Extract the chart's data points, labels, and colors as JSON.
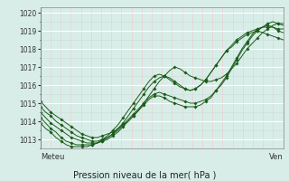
{
  "title": "Pression niveau de la mer( hPa )",
  "xlabel_left": "Meteu",
  "xlabel_right": "Ven",
  "bg_color": "#d8ede8",
  "grid_major_color": "#ffffff",
  "grid_minor_color_h": "#c8ddd8",
  "grid_minor_color_v": "#f0c8c8",
  "line_color": "#1a5c1a",
  "ylim": [
    1012.5,
    1020.3
  ],
  "yticks": [
    1013,
    1014,
    1015,
    1016,
    1017,
    1018,
    1019,
    1020
  ],
  "n_points": 48,
  "series": [
    [
      1015.1,
      1014.8,
      1014.5,
      1014.3,
      1014.1,
      1013.9,
      1013.7,
      1013.5,
      1013.3,
      1013.2,
      1013.1,
      1013.1,
      1013.2,
      1013.3,
      1013.4,
      1013.6,
      1013.8,
      1014.0,
      1014.3,
      1014.6,
      1015.0,
      1015.4,
      1015.8,
      1016.2,
      1016.5,
      1016.8,
      1017.0,
      1016.9,
      1016.7,
      1016.5,
      1016.4,
      1016.3,
      1016.2,
      1016.2,
      1016.3,
      1016.4,
      1016.6,
      1016.9,
      1017.2,
      1017.6,
      1018.0,
      1018.3,
      1018.6,
      1018.9,
      1019.1,
      1019.3,
      1019.4,
      1019.4
    ],
    [
      1014.8,
      1014.5,
      1014.3,
      1014.0,
      1013.8,
      1013.6,
      1013.4,
      1013.2,
      1013.1,
      1013.0,
      1012.9,
      1012.9,
      1013.0,
      1013.1,
      1013.3,
      1013.5,
      1013.8,
      1014.1,
      1014.4,
      1014.7,
      1015.0,
      1015.3,
      1015.5,
      1015.6,
      1015.5,
      1015.4,
      1015.3,
      1015.2,
      1015.1,
      1015.0,
      1015.0,
      1015.1,
      1015.2,
      1015.4,
      1015.7,
      1016.0,
      1016.4,
      1016.9,
      1017.4,
      1017.9,
      1018.3,
      1018.7,
      1019.0,
      1019.2,
      1019.4,
      1019.5,
      1019.4,
      1019.3
    ],
    [
      1014.5,
      1014.2,
      1013.9,
      1013.7,
      1013.5,
      1013.3,
      1013.1,
      1013.0,
      1012.9,
      1012.8,
      1012.8,
      1012.8,
      1012.9,
      1013.0,
      1013.2,
      1013.4,
      1013.7,
      1014.0,
      1014.3,
      1014.6,
      1014.9,
      1015.2,
      1015.4,
      1015.4,
      1015.3,
      1015.1,
      1015.0,
      1014.9,
      1014.8,
      1014.8,
      1014.8,
      1014.9,
      1015.1,
      1015.3,
      1015.7,
      1016.1,
      1016.5,
      1017.0,
      1017.5,
      1018.0,
      1018.4,
      1018.8,
      1019.1,
      1019.2,
      1019.2,
      1019.2,
      1019.1,
      1019.1
    ],
    [
      1014.2,
      1013.9,
      1013.6,
      1013.4,
      1013.1,
      1012.9,
      1012.8,
      1012.7,
      1012.7,
      1012.7,
      1012.7,
      1012.8,
      1012.9,
      1013.1,
      1013.3,
      1013.6,
      1013.9,
      1014.3,
      1014.7,
      1015.1,
      1015.5,
      1015.9,
      1016.2,
      1016.4,
      1016.5,
      1016.4,
      1016.2,
      1016.0,
      1015.8,
      1015.7,
      1015.8,
      1016.0,
      1016.3,
      1016.7,
      1017.1,
      1017.5,
      1017.9,
      1018.2,
      1018.5,
      1018.7,
      1018.9,
      1019.0,
      1019.1,
      1019.2,
      1019.3,
      1019.2,
      1019.0,
      1018.9
    ],
    [
      1013.9,
      1013.6,
      1013.4,
      1013.1,
      1012.9,
      1012.7,
      1012.6,
      1012.6,
      1012.6,
      1012.6,
      1012.7,
      1012.8,
      1013.0,
      1013.2,
      1013.5,
      1013.8,
      1014.2,
      1014.6,
      1015.0,
      1015.4,
      1015.8,
      1016.2,
      1016.5,
      1016.6,
      1016.5,
      1016.3,
      1016.1,
      1015.9,
      1015.8,
      1015.7,
      1015.8,
      1016.0,
      1016.3,
      1016.7,
      1017.1,
      1017.5,
      1017.9,
      1018.1,
      1018.4,
      1018.6,
      1018.8,
      1018.9,
      1019.0,
      1018.9,
      1018.8,
      1018.7,
      1018.6,
      1018.5
    ]
  ]
}
